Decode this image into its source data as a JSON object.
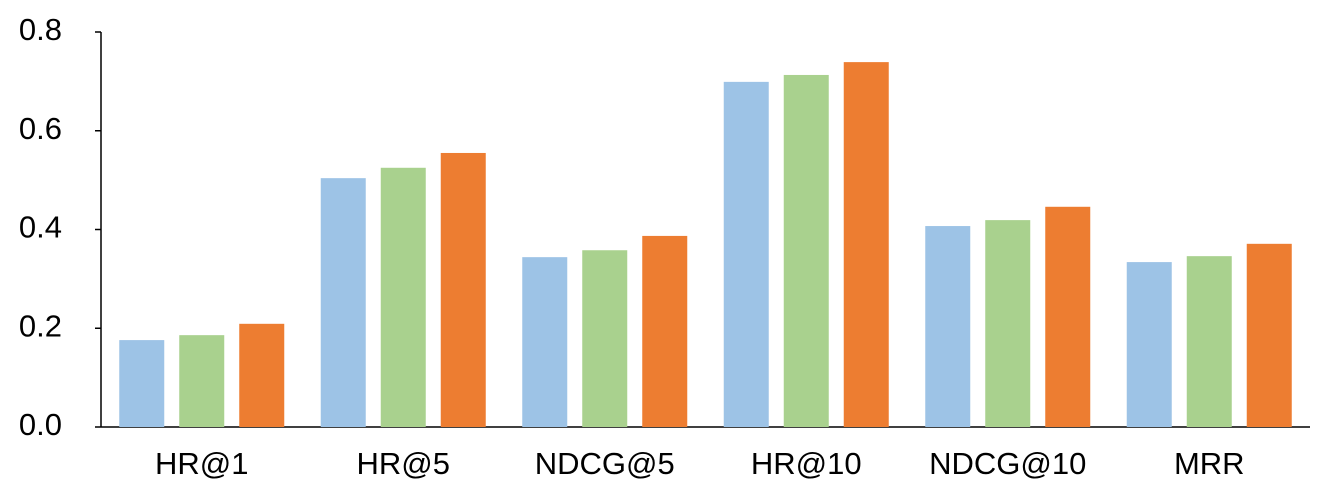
{
  "chart_data": {
    "type": "bar",
    "categories": [
      "HR@1",
      "HR@5",
      "NDCG@5",
      "HR@10",
      "NDCG@10",
      "MRR"
    ],
    "series": [
      {
        "color": "#9dc3e6",
        "values": [
          0.176,
          0.504,
          0.344,
          0.699,
          0.407,
          0.334
        ]
      },
      {
        "color": "#a9d18e",
        "values": [
          0.186,
          0.525,
          0.358,
          0.713,
          0.419,
          0.346
        ]
      },
      {
        "color": "#ed7d31",
        "values": [
          0.209,
          0.555,
          0.387,
          0.739,
          0.446,
          0.371
        ]
      }
    ],
    "ylim": [
      0,
      0.8
    ],
    "yticks": [
      {
        "value": 0,
        "label": "0.0"
      },
      0.2,
      0.4,
      0.6,
      0.8
    ],
    "grid": false
  }
}
